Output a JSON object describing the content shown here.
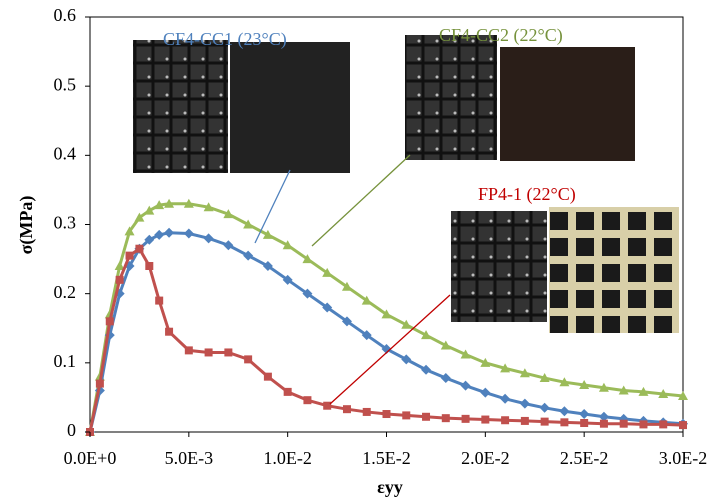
{
  "chart_data": {
    "type": "line",
    "x_label": "εyy",
    "y_label": "σ(MPa)",
    "annotations": [
      "CF4-CC1 (23°C)",
      "CF4-CC2 (22°C)",
      "FP4-1 (22°C)"
    ],
    "x": [
      0,
      0.0005,
      0.001,
      0.0015,
      0.002,
      0.0025,
      0.003,
      0.0035,
      0.004,
      0.005,
      0.006,
      0.007,
      0.008,
      0.009,
      0.01,
      0.011,
      0.012,
      0.013,
      0.014,
      0.015,
      0.016,
      0.017,
      0.018,
      0.019,
      0.02,
      0.021,
      0.022,
      0.023,
      0.024,
      0.025,
      0.026,
      0.027,
      0.028,
      0.029,
      0.03
    ],
    "series": [
      {
        "name": "CF4-CC2 (22°C)",
        "color": "#9bbb59",
        "marker": "triangle",
        "values": [
          0,
          0.08,
          0.17,
          0.24,
          0.29,
          0.31,
          0.32,
          0.328,
          0.33,
          0.33,
          0.325,
          0.315,
          0.3,
          0.285,
          0.27,
          0.25,
          0.23,
          0.21,
          0.19,
          0.17,
          0.155,
          0.14,
          0.125,
          0.112,
          0.1,
          0.092,
          0.085,
          0.078,
          0.072,
          0.068,
          0.064,
          0.06,
          0.058,
          0.055,
          0.052
        ]
      },
      {
        "name": "CF4-CC1 (23°C)",
        "color": "#4f81bd",
        "marker": "diamond",
        "values": [
          0,
          0.06,
          0.14,
          0.2,
          0.24,
          0.265,
          0.278,
          0.285,
          0.288,
          0.287,
          0.28,
          0.27,
          0.255,
          0.24,
          0.22,
          0.2,
          0.18,
          0.16,
          0.14,
          0.12,
          0.105,
          0.09,
          0.078,
          0.067,
          0.057,
          0.048,
          0.041,
          0.035,
          0.03,
          0.026,
          0.022,
          0.019,
          0.016,
          0.014,
          0.012
        ]
      },
      {
        "name": "FP4-1 (22°C)",
        "color": "#c0504d",
        "marker": "square",
        "values": [
          0,
          0.07,
          0.16,
          0.22,
          0.255,
          0.265,
          0.24,
          0.19,
          0.145,
          0.118,
          0.115,
          0.115,
          0.105,
          0.08,
          0.058,
          0.046,
          0.038,
          0.033,
          0.029,
          0.026,
          0.024,
          0.022,
          0.02,
          0.019,
          0.018,
          0.017,
          0.016,
          0.015,
          0.014,
          0.013,
          0.012,
          0.012,
          0.011,
          0.011,
          0.01
        ]
      }
    ],
    "xlim": [
      0,
      0.03
    ],
    "xticks": [
      {
        "value": 0,
        "label": "0.0E+0"
      },
      {
        "value": 0.005,
        "label": "5.0E-3"
      },
      {
        "value": 0.01,
        "label": "1.0E-2"
      },
      {
        "value": 0.015,
        "label": "1.5E-2"
      },
      {
        "value": 0.02,
        "label": "2.0E-2"
      },
      {
        "value": 0.025,
        "label": "2.5E-2"
      },
      {
        "value": 0.03,
        "label": "3.0E-2"
      }
    ],
    "ylim": [
      0,
      0.6
    ],
    "yticks": [
      0,
      0.1,
      0.2,
      0.3,
      0.4,
      0.5,
      0.6
    ]
  }
}
